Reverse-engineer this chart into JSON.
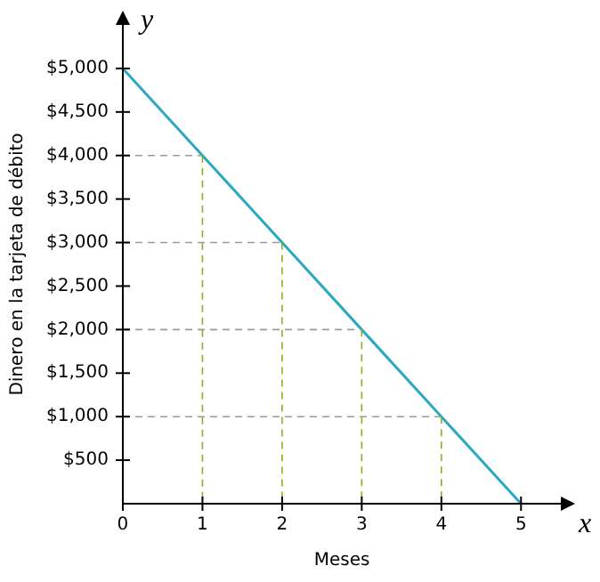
{
  "chart_data": {
    "type": "line",
    "xlabel": "Meses",
    "ylabel": "Dinero en la tarjeta de débito",
    "annotations": [
      "x",
      "y"
    ],
    "x": [
      0,
      1,
      2,
      3,
      4,
      5
    ],
    "series": [
      {
        "color": "#2aa9c0",
        "values": [
          5000,
          4000,
          3000,
          2000,
          1000,
          0
        ]
      },
      {
        "color": "#9a9a9a",
        "line_style": "dashed",
        "x": [
          0,
          1
        ],
        "values": [
          4000,
          4000
        ]
      },
      {
        "color": "#9a9a9a",
        "line_style": "dashed",
        "x": [
          0,
          2
        ],
        "values": [
          3000,
          3000
        ]
      },
      {
        "color": "#9a9a9a",
        "line_style": "dashed",
        "x": [
          0,
          3
        ],
        "values": [
          2000,
          2000
        ]
      },
      {
        "color": "#9a9a9a",
        "line_style": "dashed",
        "x": [
          0,
          4
        ],
        "values": [
          1000,
          1000
        ]
      },
      {
        "color": "#8ab020",
        "line_style": "dashed",
        "x": [
          1,
          1
        ],
        "values": [
          4000,
          0
        ]
      },
      {
        "color": "#8ab020",
        "line_style": "dashed",
        "x": [
          2,
          2
        ],
        "values": [
          3000,
          0
        ]
      },
      {
        "color": "#8ab020",
        "line_style": "dashed",
        "x": [
          3,
          3
        ],
        "values": [
          2000,
          0
        ]
      },
      {
        "color": "#8ab020",
        "line_style": "dashed",
        "x": [
          4,
          4
        ],
        "values": [
          1000,
          0
        ]
      }
    ],
    "xlim": [
      0,
      5.5
    ],
    "xticks": [
      0,
      1,
      2,
      3,
      4,
      5
    ],
    "ylim": [
      0,
      5500
    ],
    "yticks": [
      {
        "value": 500,
        "label": "$500"
      },
      {
        "value": 1000,
        "label": "$1,000"
      },
      {
        "value": 1500,
        "label": "$1,500"
      },
      {
        "value": 2000,
        "label": "$2,000"
      },
      {
        "value": 2500,
        "label": "$2,500"
      },
      {
        "value": 3000,
        "label": "$3,000"
      },
      {
        "value": 3500,
        "label": "$3,500"
      },
      {
        "value": 4000,
        "label": "$4,000"
      },
      {
        "value": 4500,
        "label": "$4,500"
      },
      {
        "value": 5000,
        "label": "$5,000"
      }
    ],
    "grid": false,
    "legend": false,
    "marker": "none",
    "line_style": "solid"
  }
}
